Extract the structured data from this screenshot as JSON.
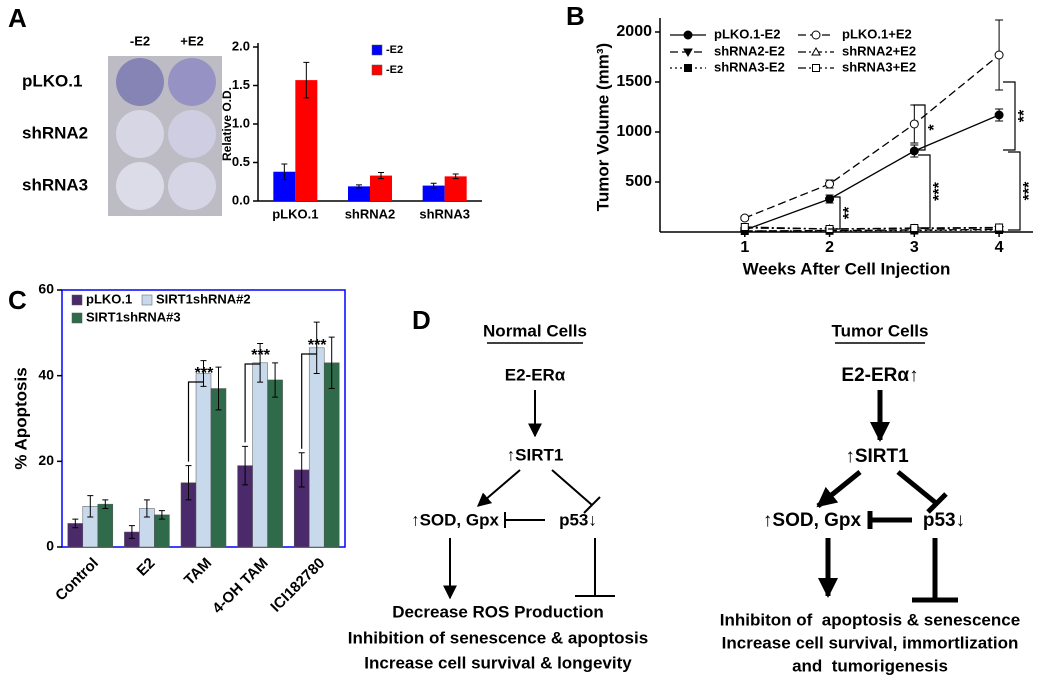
{
  "panels": [
    "A",
    "B",
    "C",
    "D"
  ],
  "photo": {
    "columns": [
      "-E2",
      "+E2"
    ],
    "rows": [
      "pLKO.1",
      "shRNA2",
      "shRNA3"
    ]
  },
  "chart_data": [
    {
      "type": "bar",
      "ylabel": "Relative O.D.",
      "categories": [
        "pLKO.1",
        "shRNA2",
        "shRNA3"
      ],
      "series": [
        {
          "name": "-E2",
          "color": "#0000ff",
          "values": [
            0.38,
            0.19,
            0.2
          ],
          "errors": [
            0.1,
            0.02,
            0.03
          ]
        },
        {
          "name": "-E2",
          "color": "#ff0000",
          "values": [
            1.57,
            0.33,
            0.32
          ],
          "errors": [
            0.23,
            0.04,
            0.03
          ]
        }
      ],
      "ylim": [
        0,
        2
      ],
      "yticks": [
        {
          "value": 0,
          "label": "0.0"
        },
        {
          "value": 0.5,
          "label": "0.5"
        },
        {
          "value": 1,
          "label": "1.0"
        },
        {
          "value": 1.5,
          "label": "1.5"
        },
        {
          "value": 2,
          "label": "2.0"
        }
      ],
      "legend": "top",
      "frame": false
    },
    {
      "type": "line",
      "ylabel": "Tumor Volume (mm³)",
      "xlabel": "Weeks After Cell Injection",
      "x": [
        1,
        2,
        3,
        4
      ],
      "xlim": [
        0,
        4.4
      ],
      "xticks": [
        1,
        2,
        3,
        4
      ],
      "ylim": [
        0,
        2100
      ],
      "yticks": [
        500,
        1000,
        1500,
        2000
      ],
      "legend": "top-left",
      "series": [
        {
          "name": "pLKO.1-E2",
          "color": "#000000",
          "dash": "solid",
          "marker": "filled-circle",
          "values": [
            20,
            330,
            810,
            1170
          ],
          "errors": [
            15,
            40,
            60,
            60
          ]
        },
        {
          "name": "shRNA2-E2",
          "color": "#000000",
          "dash": "dashed",
          "marker": "filled-triangle",
          "values": [
            10,
            15,
            20,
            25
          ]
        },
        {
          "name": "shRNA3-E2",
          "color": "#000000",
          "dash": "dotted",
          "marker": "filled-square",
          "values": [
            10,
            12,
            15,
            20
          ]
        },
        {
          "name": "pLKO.1+E2",
          "color": "#000000",
          "dash": "dashed",
          "marker": "open-circle",
          "values": [
            140,
            480,
            1080,
            1770
          ],
          "errors": [
            20,
            40,
            190,
            350
          ]
        },
        {
          "name": "shRNA2+E2",
          "color": "#000000",
          "dash": "dashdot",
          "marker": "open-triangle",
          "values": [
            40,
            30,
            35,
            40
          ]
        },
        {
          "name": "shRNA3+E2",
          "color": "#000000",
          "dash": "dashdot",
          "marker": "open-square",
          "values": [
            50,
            30,
            40,
            45
          ]
        }
      ],
      "annotations": [
        "**",
        "*",
        "***",
        "**",
        "***"
      ]
    },
    {
      "type": "bar",
      "ylabel": "% Apoptosis",
      "categories": [
        "Control",
        "E2",
        "TAM",
        "4-OH TAM",
        "ICI182780"
      ],
      "ylim": [
        0,
        60
      ],
      "yticks": [
        0,
        20,
        40,
        60
      ],
      "series": [
        {
          "name": "pLKO.1",
          "color": "#4b2a6b",
          "values": [
            5.5,
            3.5,
            15,
            19,
            18
          ],
          "errors": [
            1,
            1.5,
            4,
            4.5,
            4
          ]
        },
        {
          "name": "SIRT1shRNA#2",
          "color": "#c9d9ec",
          "values": [
            9.5,
            9,
            40.5,
            43,
            46.5
          ],
          "errors": [
            2.5,
            2,
            3,
            4.5,
            6
          ]
        },
        {
          "name": "SIRT1shRNA#3",
          "color": "#2f6b4a",
          "values": [
            10,
            7.5,
            37,
            39,
            43
          ],
          "errors": [
            1,
            1,
            5,
            4,
            6
          ]
        }
      ],
      "annotations": [
        "***",
        "***",
        "***"
      ],
      "frame": true,
      "frame_color": "#0000ff",
      "legend": "top-left"
    }
  ],
  "diagram": {
    "normal": {
      "title": "Normal Cells",
      "receptor": "E2-ERα",
      "sirt1": "↑SIRT1",
      "targets": "↑SOD, Gpx",
      "p53": "p53↓",
      "outcomes": [
        "Decrease ROS Production",
        "Inhibition of senescence & apoptosis",
        "Increase cell survival & longevity"
      ]
    },
    "tumor": {
      "title": "Tumor Cells",
      "receptor": "E2-ERα↑",
      "sirt1": "↑SIRT1",
      "targets": "↑SOD, Gpx",
      "p53": "p53↓",
      "outcomes": [
        "Inhibiton of  apoptosis & senescence",
        "Increase cell survival, immortlization",
        "and  tumorigenesis"
      ]
    }
  }
}
